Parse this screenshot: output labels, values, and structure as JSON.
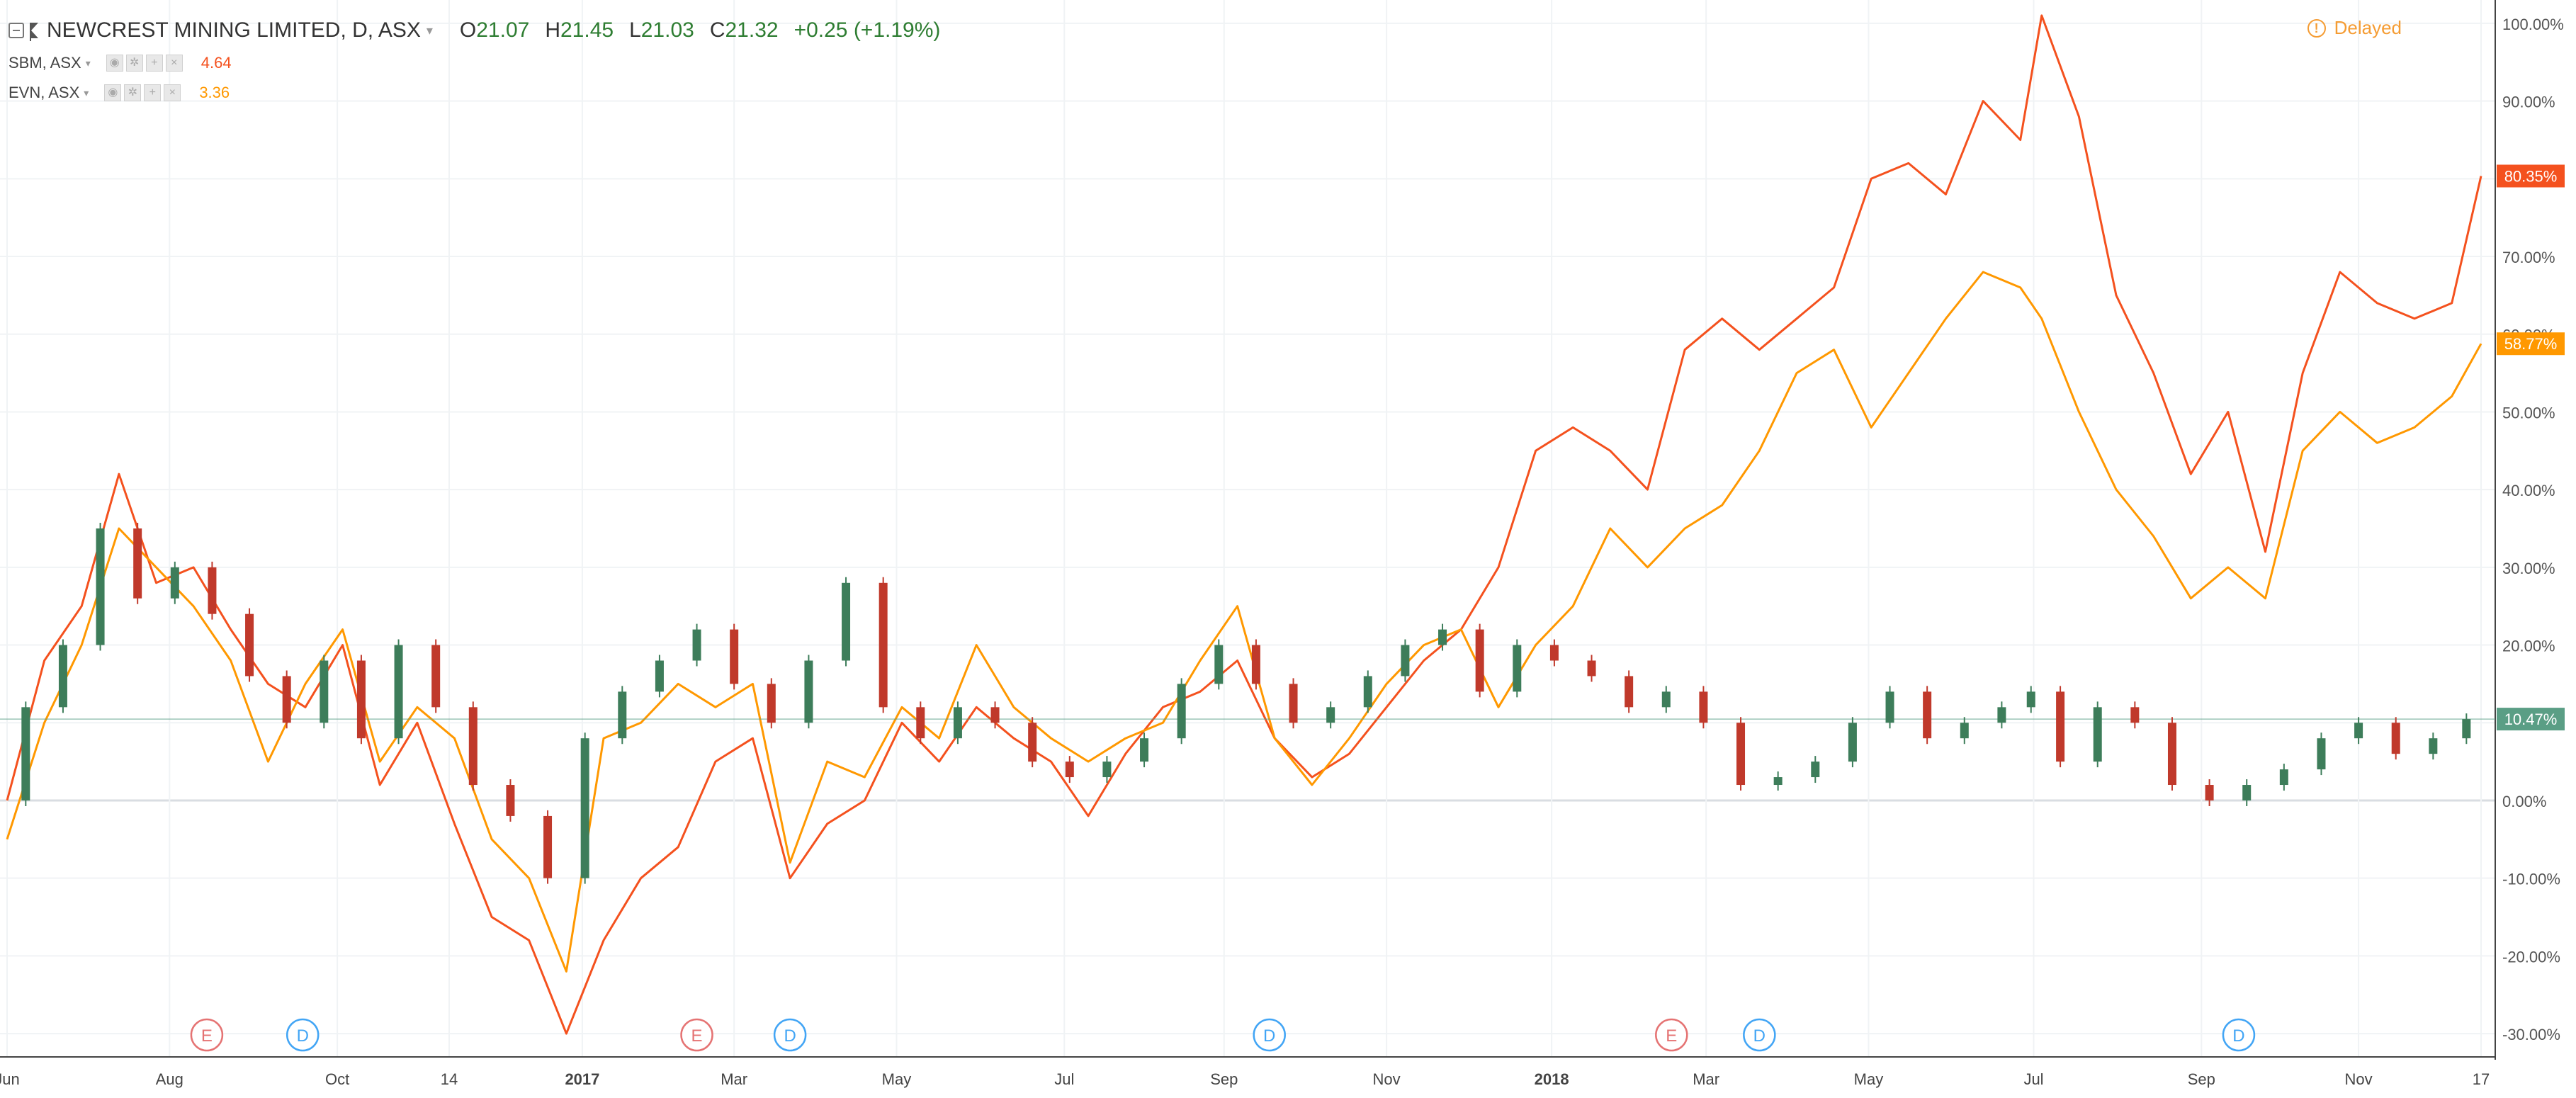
{
  "header": {
    "symbol_title": "NEWCREST MINING LIMITED, D, ASX",
    "ohlc": [
      {
        "key": "O",
        "value": "21.07"
      },
      {
        "key": "H",
        "value": "21.45"
      },
      {
        "key": "L",
        "value": "21.03"
      },
      {
        "key": "C",
        "value": "21.32"
      }
    ],
    "change": "+0.25 (+1.19%)",
    "delayed_label": "Delayed"
  },
  "comparisons": [
    {
      "title": "SBM, ASX",
      "value": "4.64",
      "color": "#f4511e"
    },
    {
      "title": "EVN, ASX",
      "value": "3.36",
      "color": "#ff9800"
    }
  ],
  "colors": {
    "up_candle": "#3d7d5a",
    "down_candle": "#c0392b",
    "sbm": "#f4511e",
    "evn": "#ff9800",
    "base_line": "#5a9e85",
    "grid": "#f0f3f5",
    "event_earnings": "#e57373",
    "event_dividend": "#42a5f5"
  },
  "chart_data": {
    "type": "line",
    "y_scale": "percent",
    "ylim": [
      -33,
      103
    ],
    "y_ticks": [
      {
        "value": 100,
        "label": "100.00%"
      },
      {
        "value": 90,
        "label": "90.00%"
      },
      {
        "value": 80,
        "label": "80.00%"
      },
      {
        "value": 70,
        "label": "70.00%"
      },
      {
        "value": 60,
        "label": "60.00%"
      },
      {
        "value": 50,
        "label": "50.00%"
      },
      {
        "value": 40,
        "label": "40.00%"
      },
      {
        "value": 30,
        "label": "30.00%"
      },
      {
        "value": 20,
        "label": "20.00%"
      },
      {
        "value": 10,
        "label": "10.00%"
      },
      {
        "value": 0,
        "label": "0.00%"
      },
      {
        "value": -10,
        "label": "-10.00%"
      },
      {
        "value": -20,
        "label": "-20.00%"
      },
      {
        "value": -30,
        "label": "-30.00%"
      }
    ],
    "x_domain": [
      "2016-06-01",
      "2018-12-17"
    ],
    "x_ticks": [
      {
        "date": "2016-06-01",
        "label": "Jun",
        "bold": false
      },
      {
        "date": "2016-08-01",
        "label": "Aug",
        "bold": false
      },
      {
        "date": "2016-10-03",
        "label": "Oct",
        "bold": false
      },
      {
        "date": "2016-11-14",
        "label": "14",
        "bold": false
      },
      {
        "date": "2017-01-03",
        "label": "2017",
        "bold": true
      },
      {
        "date": "2017-03-01",
        "label": "Mar",
        "bold": false
      },
      {
        "date": "2017-05-01",
        "label": "May",
        "bold": false
      },
      {
        "date": "2017-07-03",
        "label": "Jul",
        "bold": false
      },
      {
        "date": "2017-09-01",
        "label": "Sep",
        "bold": false
      },
      {
        "date": "2017-11-01",
        "label": "Nov",
        "bold": false
      },
      {
        "date": "2018-01-02",
        "label": "2018",
        "bold": true
      },
      {
        "date": "2018-03-01",
        "label": "Mar",
        "bold": false
      },
      {
        "date": "2018-05-01",
        "label": "May",
        "bold": false
      },
      {
        "date": "2018-07-02",
        "label": "Jul",
        "bold": false
      },
      {
        "date": "2018-09-03",
        "label": "Sep",
        "bold": false
      },
      {
        "date": "2018-11-01",
        "label": "Nov",
        "bold": false
      },
      {
        "date": "2018-12-17",
        "label": "17",
        "bold": false
      }
    ],
    "series": [
      {
        "name": "SBM, ASX",
        "color": "#f4511e",
        "last_label": "80.35%",
        "points": [
          [
            "2016-06-01",
            0
          ],
          [
            "2016-06-15",
            18
          ],
          [
            "2016-06-29",
            25
          ],
          [
            "2016-07-13",
            42
          ],
          [
            "2016-07-27",
            28
          ],
          [
            "2016-08-10",
            30
          ],
          [
            "2016-08-24",
            22
          ],
          [
            "2016-09-07",
            15
          ],
          [
            "2016-09-21",
            12
          ],
          [
            "2016-10-05",
            20
          ],
          [
            "2016-10-19",
            2
          ],
          [
            "2016-11-02",
            10
          ],
          [
            "2016-11-16",
            -3
          ],
          [
            "2016-11-30",
            -15
          ],
          [
            "2016-12-14",
            -18
          ],
          [
            "2016-12-28",
            -30
          ],
          [
            "2017-01-11",
            -18
          ],
          [
            "2017-01-25",
            -10
          ],
          [
            "2017-02-08",
            -6
          ],
          [
            "2017-02-22",
            5
          ],
          [
            "2017-03-08",
            8
          ],
          [
            "2017-03-22",
            -10
          ],
          [
            "2017-04-05",
            -3
          ],
          [
            "2017-04-19",
            0
          ],
          [
            "2017-05-03",
            10
          ],
          [
            "2017-05-17",
            5
          ],
          [
            "2017-05-31",
            12
          ],
          [
            "2017-06-14",
            8
          ],
          [
            "2017-06-28",
            5
          ],
          [
            "2017-07-12",
            -2
          ],
          [
            "2017-07-26",
            6
          ],
          [
            "2017-08-09",
            12
          ],
          [
            "2017-08-23",
            14
          ],
          [
            "2017-09-06",
            18
          ],
          [
            "2017-09-20",
            8
          ],
          [
            "2017-10-04",
            3
          ],
          [
            "2017-10-18",
            6
          ],
          [
            "2017-11-01",
            12
          ],
          [
            "2017-11-15",
            18
          ],
          [
            "2017-11-29",
            22
          ],
          [
            "2017-12-13",
            30
          ],
          [
            "2017-12-27",
            45
          ],
          [
            "2018-01-10",
            48
          ],
          [
            "2018-01-24",
            45
          ],
          [
            "2018-02-07",
            40
          ],
          [
            "2018-02-21",
            58
          ],
          [
            "2018-03-07",
            62
          ],
          [
            "2018-03-21",
            58
          ],
          [
            "2018-04-04",
            62
          ],
          [
            "2018-04-18",
            66
          ],
          [
            "2018-05-02",
            80
          ],
          [
            "2018-05-16",
            82
          ],
          [
            "2018-05-30",
            78
          ],
          [
            "2018-06-13",
            90
          ],
          [
            "2018-06-27",
            85
          ],
          [
            "2018-07-05",
            101
          ],
          [
            "2018-07-19",
            88
          ],
          [
            "2018-08-02",
            65
          ],
          [
            "2018-08-16",
            55
          ],
          [
            "2018-08-30",
            42
          ],
          [
            "2018-09-13",
            50
          ],
          [
            "2018-09-27",
            32
          ],
          [
            "2018-10-11",
            55
          ],
          [
            "2018-10-25",
            68
          ],
          [
            "2018-11-08",
            64
          ],
          [
            "2018-11-22",
            62
          ],
          [
            "2018-12-06",
            64
          ],
          [
            "2018-12-17",
            80.35
          ]
        ]
      },
      {
        "name": "EVN, ASX",
        "color": "#ff9800",
        "last_label": "58.77%",
        "points": [
          [
            "2016-06-01",
            -5
          ],
          [
            "2016-06-15",
            10
          ],
          [
            "2016-06-29",
            20
          ],
          [
            "2016-07-13",
            35
          ],
          [
            "2016-07-27",
            30
          ],
          [
            "2016-08-10",
            25
          ],
          [
            "2016-08-24",
            18
          ],
          [
            "2016-09-07",
            5
          ],
          [
            "2016-09-21",
            15
          ],
          [
            "2016-10-05",
            22
          ],
          [
            "2016-10-19",
            5
          ],
          [
            "2016-11-02",
            12
          ],
          [
            "2016-11-16",
            8
          ],
          [
            "2016-11-30",
            -5
          ],
          [
            "2016-12-14",
            -10
          ],
          [
            "2016-12-28",
            -22
          ],
          [
            "2017-01-11",
            8
          ],
          [
            "2017-01-25",
            10
          ],
          [
            "2017-02-08",
            15
          ],
          [
            "2017-02-22",
            12
          ],
          [
            "2017-03-08",
            15
          ],
          [
            "2017-03-22",
            -8
          ],
          [
            "2017-04-05",
            5
          ],
          [
            "2017-04-19",
            3
          ],
          [
            "2017-05-03",
            12
          ],
          [
            "2017-05-17",
            8
          ],
          [
            "2017-05-31",
            20
          ],
          [
            "2017-06-14",
            12
          ],
          [
            "2017-06-28",
            8
          ],
          [
            "2017-07-12",
            5
          ],
          [
            "2017-07-26",
            8
          ],
          [
            "2017-08-09",
            10
          ],
          [
            "2017-08-23",
            18
          ],
          [
            "2017-09-06",
            25
          ],
          [
            "2017-09-20",
            8
          ],
          [
            "2017-10-04",
            2
          ],
          [
            "2017-10-18",
            8
          ],
          [
            "2017-11-01",
            15
          ],
          [
            "2017-11-15",
            20
          ],
          [
            "2017-11-29",
            22
          ],
          [
            "2017-12-13",
            12
          ],
          [
            "2017-12-27",
            20
          ],
          [
            "2018-01-10",
            25
          ],
          [
            "2018-01-24",
            35
          ],
          [
            "2018-02-07",
            30
          ],
          [
            "2018-02-21",
            35
          ],
          [
            "2018-03-07",
            38
          ],
          [
            "2018-03-21",
            45
          ],
          [
            "2018-04-04",
            55
          ],
          [
            "2018-04-18",
            58
          ],
          [
            "2018-05-02",
            48
          ],
          [
            "2018-05-16",
            55
          ],
          [
            "2018-05-30",
            62
          ],
          [
            "2018-06-13",
            68
          ],
          [
            "2018-06-27",
            66
          ],
          [
            "2018-07-05",
            62
          ],
          [
            "2018-07-19",
            50
          ],
          [
            "2018-08-02",
            40
          ],
          [
            "2018-08-16",
            34
          ],
          [
            "2018-08-30",
            26
          ],
          [
            "2018-09-13",
            30
          ],
          [
            "2018-09-27",
            26
          ],
          [
            "2018-10-11",
            45
          ],
          [
            "2018-10-25",
            50
          ],
          [
            "2018-11-08",
            46
          ],
          [
            "2018-11-22",
            48
          ],
          [
            "2018-12-06",
            52
          ],
          [
            "2018-12-17",
            58.77
          ]
        ]
      },
      {
        "name": "NEWCREST MINING LIMITED, D, ASX",
        "style": "candles",
        "last_label": "10.47%",
        "points": [
          [
            "2016-06-01",
            0
          ],
          [
            "2016-06-15",
            12
          ],
          [
            "2016-06-29",
            20
          ],
          [
            "2016-07-13",
            35
          ],
          [
            "2016-07-27",
            26
          ],
          [
            "2016-08-10",
            30
          ],
          [
            "2016-08-24",
            24
          ],
          [
            "2016-09-07",
            16
          ],
          [
            "2016-09-21",
            10
          ],
          [
            "2016-10-05",
            18
          ],
          [
            "2016-10-19",
            8
          ],
          [
            "2016-11-02",
            20
          ],
          [
            "2016-11-16",
            12
          ],
          [
            "2016-11-30",
            2
          ],
          [
            "2016-12-14",
            -2
          ],
          [
            "2016-12-28",
            -10
          ],
          [
            "2017-01-11",
            8
          ],
          [
            "2017-01-25",
            14
          ],
          [
            "2017-02-08",
            18
          ],
          [
            "2017-02-22",
            22
          ],
          [
            "2017-03-08",
            15
          ],
          [
            "2017-03-22",
            10
          ],
          [
            "2017-04-05",
            18
          ],
          [
            "2017-04-19",
            28
          ],
          [
            "2017-05-03",
            12
          ],
          [
            "2017-05-17",
            8
          ],
          [
            "2017-05-31",
            12
          ],
          [
            "2017-06-14",
            10
          ],
          [
            "2017-06-28",
            5
          ],
          [
            "2017-07-12",
            3
          ],
          [
            "2017-07-26",
            5
          ],
          [
            "2017-08-09",
            8
          ],
          [
            "2017-08-23",
            15
          ],
          [
            "2017-09-06",
            20
          ],
          [
            "2017-09-20",
            15
          ],
          [
            "2017-10-04",
            10
          ],
          [
            "2017-10-18",
            12
          ],
          [
            "2017-11-01",
            16
          ],
          [
            "2017-11-15",
            20
          ],
          [
            "2017-11-29",
            22
          ],
          [
            "2017-12-13",
            14
          ],
          [
            "2017-12-27",
            20
          ],
          [
            "2018-01-10",
            18
          ],
          [
            "2018-01-24",
            16
          ],
          [
            "2018-02-07",
            12
          ],
          [
            "2018-02-21",
            14
          ],
          [
            "2018-03-07",
            10
          ],
          [
            "2018-03-21",
            2
          ],
          [
            "2018-04-04",
            3
          ],
          [
            "2018-04-18",
            5
          ],
          [
            "2018-05-02",
            10
          ],
          [
            "2018-05-16",
            14
          ],
          [
            "2018-05-30",
            8
          ],
          [
            "2018-06-13",
            10
          ],
          [
            "2018-06-27",
            12
          ],
          [
            "2018-07-05",
            14
          ],
          [
            "2018-07-19",
            5
          ],
          [
            "2018-08-02",
            12
          ],
          [
            "2018-08-16",
            10
          ],
          [
            "2018-08-30",
            2
          ],
          [
            "2018-09-13",
            0
          ],
          [
            "2018-09-27",
            2
          ],
          [
            "2018-10-11",
            4
          ],
          [
            "2018-10-25",
            8
          ],
          [
            "2018-11-08",
            10
          ],
          [
            "2018-11-22",
            6
          ],
          [
            "2018-12-06",
            8
          ],
          [
            "2018-12-17",
            10.47
          ]
        ]
      }
    ],
    "events": [
      {
        "date": "2016-08-15",
        "label": "E",
        "kind": "earnings"
      },
      {
        "date": "2016-09-20",
        "label": "D",
        "kind": "dividend"
      },
      {
        "date": "2017-02-15",
        "label": "E",
        "kind": "earnings"
      },
      {
        "date": "2017-03-22",
        "label": "D",
        "kind": "dividend"
      },
      {
        "date": "2017-09-18",
        "label": "D",
        "kind": "dividend"
      },
      {
        "date": "2018-02-16",
        "label": "E",
        "kind": "earnings"
      },
      {
        "date": "2018-03-21",
        "label": "D",
        "kind": "dividend"
      },
      {
        "date": "2018-09-17",
        "label": "D",
        "kind": "dividend"
      }
    ]
  }
}
